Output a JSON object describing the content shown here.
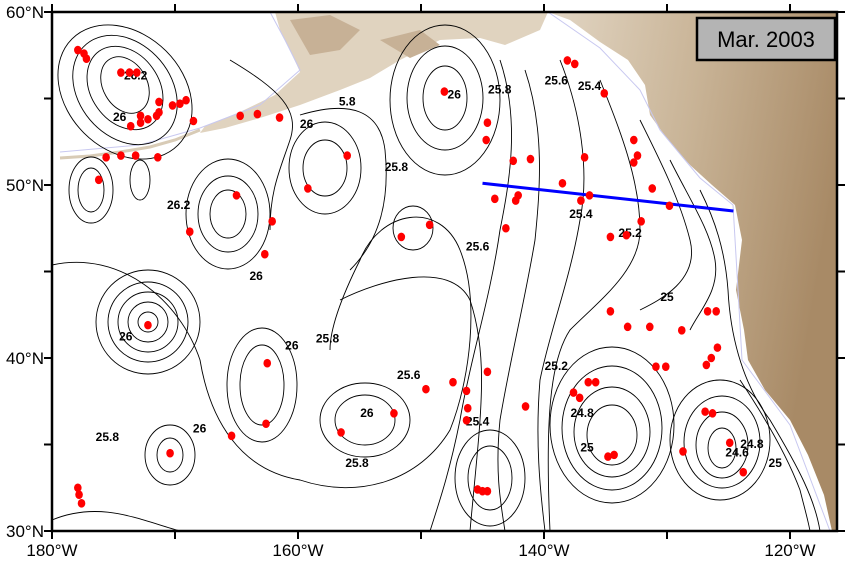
{
  "title": "Mar. 2003",
  "chart_data": {
    "type": "contour-map",
    "title": "Mar. 2003",
    "xlim": [
      -180,
      -117
    ],
    "ylim": [
      30,
      60
    ],
    "x_ticks": [
      "180°W",
      "160°W",
      "140°W",
      "120°W"
    ],
    "y_ticks": [
      "60°N",
      "50°N",
      "40°N",
      "30°N"
    ],
    "contour_labels": [
      {
        "text": "26.2",
        "lon": -173.2,
        "lat": 56.1
      },
      {
        "text": "5.8",
        "lon": -156.0,
        "lat": 54.6
      },
      {
        "text": "26",
        "lon": -174.5,
        "lat": 53.7
      },
      {
        "text": "26",
        "lon": -159.3,
        "lat": 53.3
      },
      {
        "text": "26",
        "lon": -147.3,
        "lat": 55.0
      },
      {
        "text": "25.8",
        "lon": -143.6,
        "lat": 55.3
      },
      {
        "text": "25.6",
        "lon": -139.0,
        "lat": 55.8
      },
      {
        "text": "25.4",
        "lon": -136.3,
        "lat": 55.5
      },
      {
        "text": "25.8",
        "lon": -152.0,
        "lat": 50.8
      },
      {
        "text": "26.2",
        "lon": -169.7,
        "lat": 48.6
      },
      {
        "text": "26",
        "lon": -163.4,
        "lat": 44.5
      },
      {
        "text": "25.6",
        "lon": -145.4,
        "lat": 46.2
      },
      {
        "text": "25.4",
        "lon": -137.0,
        "lat": 48.1
      },
      {
        "text": "25.2",
        "lon": -133.0,
        "lat": 47.0
      },
      {
        "text": "26",
        "lon": -174.0,
        "lat": 41.0
      },
      {
        "text": "26",
        "lon": -160.5,
        "lat": 40.5
      },
      {
        "text": "25.8",
        "lon": -157.6,
        "lat": 40.9
      },
      {
        "text": "25",
        "lon": -130.0,
        "lat": 43.3
      },
      {
        "text": "25.6",
        "lon": -151.0,
        "lat": 38.8
      },
      {
        "text": "25.2",
        "lon": -139.0,
        "lat": 39.3
      },
      {
        "text": "25.4",
        "lon": -145.4,
        "lat": 36.1
      },
      {
        "text": "24.8",
        "lon": -136.9,
        "lat": 36.6
      },
      {
        "text": "26",
        "lon": -154.4,
        "lat": 36.6
      },
      {
        "text": "26",
        "lon": -168.0,
        "lat": 35.7
      },
      {
        "text": "25.8",
        "lon": -175.5,
        "lat": 35.2
      },
      {
        "text": "25.8",
        "lon": -155.2,
        "lat": 33.7
      },
      {
        "text": "25",
        "lon": -136.5,
        "lat": 34.6
      },
      {
        "text": "24.6",
        "lon": -124.3,
        "lat": 34.3
      },
      {
        "text": "24.8",
        "lon": -123.1,
        "lat": 34.8
      },
      {
        "text": "25",
        "lon": -121.2,
        "lat": 33.7
      }
    ],
    "observations": [
      [
        -177.9,
        57.8
      ],
      [
        -177.4,
        57.6
      ],
      [
        -177.2,
        57.3
      ],
      [
        -174.4,
        56.5
      ],
      [
        -173.7,
        56.5
      ],
      [
        -173.1,
        56.5
      ],
      [
        -172.8,
        54.0
      ],
      [
        -171.3,
        54.8
      ],
      [
        -171.3,
        54.2
      ],
      [
        -171.5,
        54.0
      ],
      [
        -172.2,
        53.8
      ],
      [
        -170.2,
        54.6
      ],
      [
        -169.6,
        54.7
      ],
      [
        -169.1,
        54.9
      ],
      [
        -173.6,
        53.4
      ],
      [
        -172.8,
        53.6
      ],
      [
        -175.6,
        51.6
      ],
      [
        -174.4,
        51.7
      ],
      [
        -173.2,
        51.7
      ],
      [
        -171.4,
        51.6
      ],
      [
        -176.2,
        50.3
      ],
      [
        -168.5,
        53.7
      ],
      [
        -164.7,
        54.0
      ],
      [
        -163.3,
        54.1
      ],
      [
        -161.5,
        53.9
      ],
      [
        -159.2,
        49.8
      ],
      [
        -156.0,
        51.7
      ],
      [
        -165.0,
        49.4
      ],
      [
        -168.8,
        47.3
      ],
      [
        -162.1,
        47.9
      ],
      [
        -162.7,
        46.0
      ],
      [
        -172.2,
        41.9
      ],
      [
        -162.5,
        39.7
      ],
      [
        -162.6,
        36.2
      ],
      [
        -165.4,
        35.5
      ],
      [
        -170.4,
        34.5
      ],
      [
        -156.5,
        35.7
      ],
      [
        -152.2,
        36.8
      ],
      [
        -147.4,
        38.6
      ],
      [
        -149.6,
        38.2
      ],
      [
        -144.6,
        39.2
      ],
      [
        -146.3,
        38.1
      ],
      [
        -146.2,
        37.1
      ],
      [
        -146.3,
        36.4
      ],
      [
        -141.5,
        37.2
      ],
      [
        -177.9,
        32.5
      ],
      [
        -177.8,
        32.1
      ],
      [
        -177.6,
        31.6
      ],
      [
        -145.4,
        32.4
      ],
      [
        -145.0,
        32.3
      ],
      [
        -144.6,
        32.3
      ],
      [
        -148.1,
        55.4
      ],
      [
        -144.6,
        53.6
      ],
      [
        -144.7,
        52.6
      ],
      [
        -142.5,
        51.4
      ],
      [
        -141.1,
        51.5
      ],
      [
        -138.5,
        50.1
      ],
      [
        -136.7,
        51.6
      ],
      [
        -138.1,
        57.2
      ],
      [
        -137.5,
        57.0
      ],
      [
        -135.1,
        55.3
      ],
      [
        -132.7,
        52.6
      ],
      [
        -132.4,
        51.7
      ],
      [
        -132.7,
        51.3
      ],
      [
        -137.0,
        49.1
      ],
      [
        -136.3,
        49.4
      ],
      [
        -134.6,
        47.0
      ],
      [
        -133.3,
        47.1
      ],
      [
        -132.1,
        47.9
      ],
      [
        -131.2,
        49.8
      ],
      [
        -129.8,
        48.8
      ],
      [
        -144.0,
        49.2
      ],
      [
        -142.3,
        49.1
      ],
      [
        -142.1,
        49.4
      ],
      [
        -143.1,
        47.5
      ],
      [
        -151.6,
        47.0
      ],
      [
        -149.3,
        47.7
      ],
      [
        -134.6,
        42.7
      ],
      [
        -133.2,
        41.8
      ],
      [
        -131.4,
        41.8
      ],
      [
        -128.8,
        41.6
      ],
      [
        -130.1,
        39.5
      ],
      [
        -130.9,
        39.5
      ],
      [
        -126.7,
        42.7
      ],
      [
        -126.0,
        42.7
      ],
      [
        -125.9,
        40.6
      ],
      [
        -126.4,
        40.0
      ],
      [
        -126.8,
        39.6
      ],
      [
        -137.6,
        38.0
      ],
      [
        -137.1,
        37.7
      ],
      [
        -136.4,
        38.6
      ],
      [
        -135.8,
        38.6
      ],
      [
        -134.8,
        34.3
      ],
      [
        -134.3,
        34.4
      ],
      [
        -128.7,
        34.6
      ],
      [
        -126.9,
        36.9
      ],
      [
        -126.3,
        36.8
      ],
      [
        -124.9,
        35.1
      ],
      [
        -123.8,
        33.4
      ]
    ],
    "section_line": [
      [
        -145.0,
        50.1
      ],
      [
        -124.6,
        48.5
      ]
    ],
    "colors": {
      "observations": "#ff0000",
      "section_line": "#0000ff",
      "land": "#c9b497",
      "box": "#b4b4b4"
    }
  }
}
